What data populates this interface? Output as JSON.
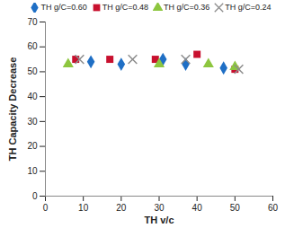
{
  "chart_data": {
    "type": "scatter",
    "x_label": "TH v/c",
    "y_label": "TH Capacity Decrease",
    "xlim": [
      0,
      60
    ],
    "xticks": [
      0,
      10,
      20,
      30,
      40,
      50,
      60
    ],
    "ylim": [
      0,
      70
    ],
    "yticks": [
      0,
      10,
      20,
      30,
      40,
      50,
      60,
      70
    ],
    "grid": false,
    "legend": "top",
    "series": [
      {
        "name": "TH g/C=0.60",
        "color": "#1f6fc5",
        "marker": "diamond",
        "x": [
          12,
          20,
          31,
          37,
          47
        ],
        "values": [
          54,
          53,
          55,
          53,
          51.5
        ]
      },
      {
        "name": "TH g/C=0.48",
        "color": "#c8102e",
        "marker": "square",
        "x": [
          8,
          17,
          29,
          40,
          50
        ],
        "values": [
          55,
          55,
          55,
          57,
          51
        ]
      },
      {
        "name": "TH g/C=0.36",
        "color": "#8dc63f",
        "marker": "triangle",
        "x": [
          6,
          30,
          43,
          50
        ],
        "values": [
          53,
          53,
          53,
          52
        ]
      },
      {
        "name": "TH g/C=0.24",
        "color": "#8c8c8c",
        "marker": "times",
        "x": [
          9,
          23,
          37,
          51
        ],
        "values": [
          55,
          55,
          55,
          51
        ]
      }
    ]
  }
}
